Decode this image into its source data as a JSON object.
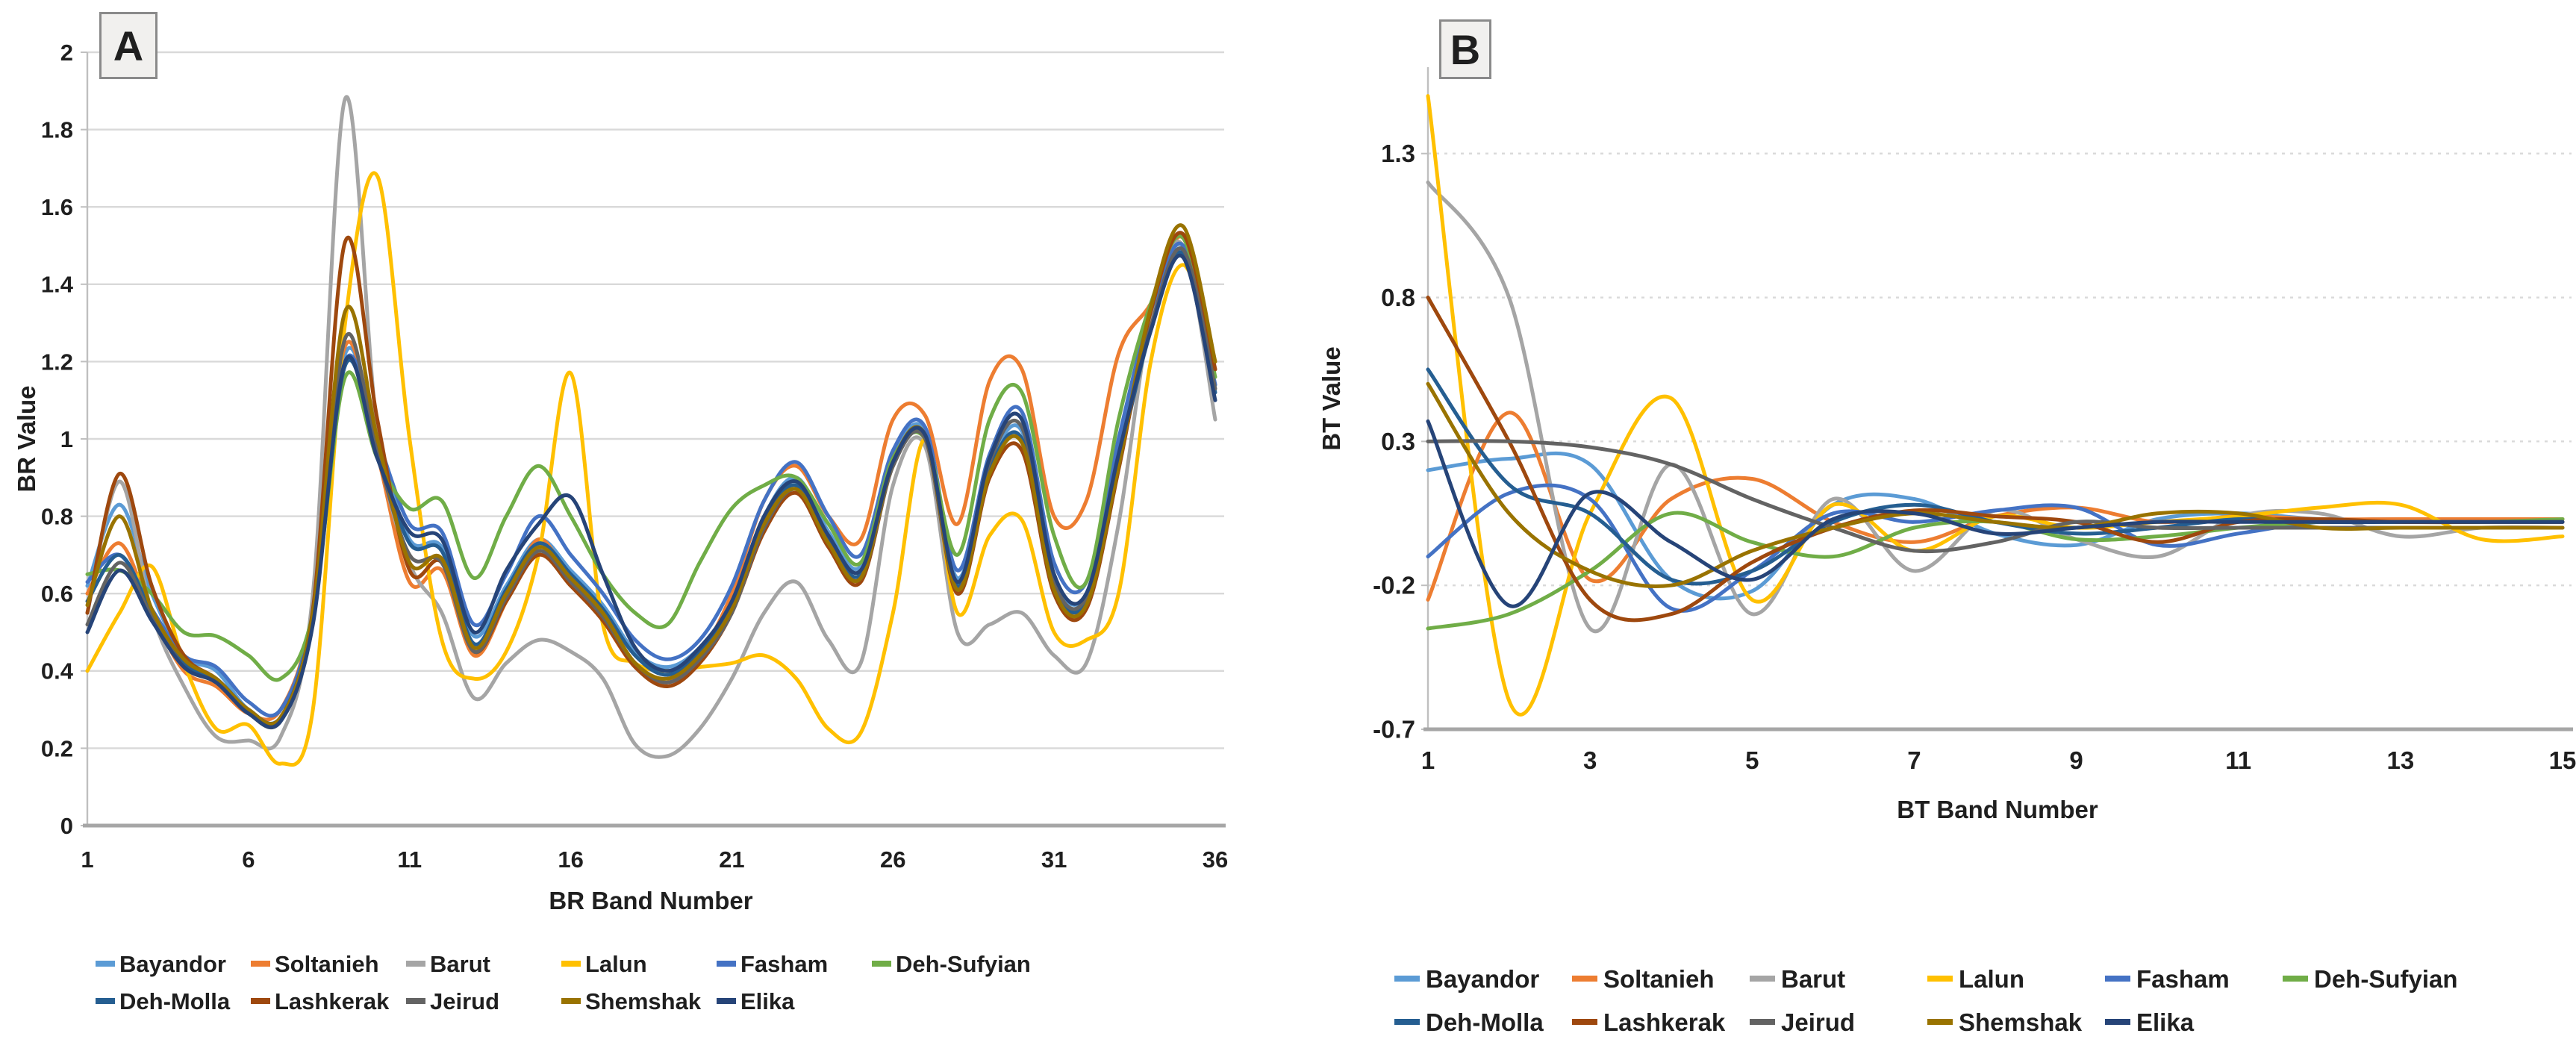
{
  "figure": {
    "panel_count": 2,
    "text_color": "#1f1f1f",
    "grid_color": "#d9d9d9",
    "axis_color": "#a6a6a6"
  },
  "chart_data": [
    {
      "type": "line",
      "panel_label": "A",
      "xlabel": "BR Band Number",
      "ylabel": "BR Value",
      "x_range": [
        1,
        36
      ],
      "xticks": [
        1,
        6,
        11,
        16,
        21,
        26,
        31,
        36
      ],
      "ylim": [
        0,
        2
      ],
      "yticks": [
        {
          "v": 0,
          "label": "0"
        },
        {
          "v": 0.2,
          "label": "0.2"
        },
        {
          "v": 0.4,
          "label": "0.4"
        },
        {
          "v": 0.6,
          "label": "0.6"
        },
        {
          "v": 0.8,
          "label": "0.8"
        },
        {
          "v": 1,
          "label": "1"
        },
        {
          "v": 1.2,
          "label": "1.2"
        },
        {
          "v": 1.4,
          "label": "1.4"
        },
        {
          "v": 1.6,
          "label": "1.6"
        },
        {
          "v": 1.8,
          "label": "1.8"
        },
        {
          "v": 2,
          "label": "2"
        }
      ],
      "grid_style": "solid",
      "legend_position": "bottom",
      "series": [
        {
          "name": "Bayandor",
          "color": "#5B9BD5",
          "values": [
            0.62,
            0.83,
            0.6,
            0.44,
            0.4,
            0.3,
            0.28,
            0.55,
            1.22,
            1.0,
            0.74,
            0.72,
            0.49,
            0.62,
            0.74,
            0.66,
            0.57,
            0.45,
            0.41,
            0.46,
            0.58,
            0.8,
            0.9,
            0.76,
            0.67,
            0.95,
            1.02,
            0.64,
            0.93,
            1.02,
            0.64,
            0.6,
            0.96,
            1.32,
            1.5,
            1.14
          ]
        },
        {
          "name": "Soltanieh",
          "color": "#ED7D31",
          "values": [
            0.6,
            0.73,
            0.55,
            0.4,
            0.36,
            0.29,
            0.3,
            0.56,
            1.24,
            0.96,
            0.63,
            0.66,
            0.44,
            0.58,
            0.74,
            0.63,
            0.53,
            0.41,
            0.37,
            0.44,
            0.6,
            0.84,
            0.93,
            0.8,
            0.74,
            1.05,
            1.06,
            0.78,
            1.15,
            1.18,
            0.8,
            0.84,
            1.22,
            1.35,
            1.52,
            1.18
          ]
        },
        {
          "name": "Barut",
          "color": "#A5A5A5",
          "values": [
            0.55,
            0.89,
            0.55,
            0.36,
            0.23,
            0.22,
            0.23,
            0.6,
            1.88,
            1.02,
            0.68,
            0.55,
            0.33,
            0.42,
            0.48,
            0.45,
            0.38,
            0.21,
            0.18,
            0.25,
            0.38,
            0.55,
            0.63,
            0.48,
            0.42,
            0.88,
            0.98,
            0.5,
            0.52,
            0.55,
            0.44,
            0.42,
            0.78,
            1.32,
            1.5,
            1.05
          ]
        },
        {
          "name": "Lalun",
          "color": "#FFC000",
          "values": [
            0.4,
            0.55,
            0.67,
            0.42,
            0.25,
            0.26,
            0.16,
            0.3,
            1.3,
            1.68,
            1.0,
            0.48,
            0.38,
            0.45,
            0.7,
            1.17,
            0.52,
            0.42,
            0.4,
            0.41,
            0.42,
            0.44,
            0.38,
            0.25,
            0.24,
            0.55,
            1.0,
            0.55,
            0.75,
            0.79,
            0.5,
            0.48,
            0.6,
            1.2,
            1.45,
            1.2
          ]
        },
        {
          "name": "Fasham",
          "color": "#4472C4",
          "values": [
            0.63,
            0.7,
            0.56,
            0.44,
            0.41,
            0.32,
            0.3,
            0.55,
            1.2,
            1.0,
            0.78,
            0.76,
            0.52,
            0.65,
            0.8,
            0.7,
            0.6,
            0.48,
            0.43,
            0.48,
            0.62,
            0.84,
            0.94,
            0.8,
            0.7,
            0.97,
            1.03,
            0.66,
            0.96,
            1.07,
            0.68,
            0.63,
            1.0,
            1.33,
            1.5,
            1.14
          ]
        },
        {
          "name": "Deh-Sufyian",
          "color": "#70AD47",
          "values": [
            0.65,
            0.66,
            0.6,
            0.5,
            0.49,
            0.44,
            0.38,
            0.55,
            1.16,
            0.95,
            0.82,
            0.84,
            0.64,
            0.8,
            0.93,
            0.8,
            0.65,
            0.55,
            0.52,
            0.68,
            0.82,
            0.88,
            0.9,
            0.78,
            0.68,
            0.95,
            1.0,
            0.7,
            1.05,
            1.12,
            0.75,
            0.63,
            1.05,
            1.35,
            1.52,
            1.16
          ]
        },
        {
          "name": "Deh-Molla",
          "color": "#255E91",
          "values": [
            0.58,
            0.7,
            0.55,
            0.42,
            0.38,
            0.3,
            0.28,
            0.54,
            1.19,
            0.97,
            0.73,
            0.71,
            0.47,
            0.61,
            0.73,
            0.65,
            0.56,
            0.44,
            0.39,
            0.45,
            0.57,
            0.79,
            0.88,
            0.74,
            0.65,
            0.94,
            1.01,
            0.62,
            0.92,
            1.0,
            0.62,
            0.58,
            0.94,
            1.28,
            1.48,
            1.12
          ]
        },
        {
          "name": "Lashkerak",
          "color": "#9E480E",
          "values": [
            0.55,
            0.91,
            0.62,
            0.44,
            0.38,
            0.3,
            0.28,
            0.56,
            1.51,
            1.05,
            0.66,
            0.68,
            0.45,
            0.58,
            0.7,
            0.62,
            0.53,
            0.41,
            0.36,
            0.42,
            0.55,
            0.76,
            0.86,
            0.72,
            0.63,
            0.93,
            1.0,
            0.6,
            0.9,
            0.97,
            0.6,
            0.56,
            0.92,
            1.33,
            1.53,
            1.18
          ]
        },
        {
          "name": "Jeirud",
          "color": "#636363",
          "values": [
            0.52,
            0.68,
            0.54,
            0.41,
            0.37,
            0.29,
            0.27,
            0.53,
            1.26,
            0.96,
            0.7,
            0.68,
            0.45,
            0.59,
            0.71,
            0.63,
            0.54,
            0.42,
            0.37,
            0.43,
            0.55,
            0.77,
            0.87,
            0.73,
            0.64,
            0.93,
            1.0,
            0.61,
            0.94,
            1.03,
            0.63,
            0.59,
            0.95,
            1.29,
            1.49,
            1.13
          ]
        },
        {
          "name": "Shemshak",
          "color": "#997300",
          "values": [
            0.57,
            0.8,
            0.56,
            0.43,
            0.38,
            0.3,
            0.28,
            0.55,
            1.33,
            1.0,
            0.68,
            0.69,
            0.46,
            0.6,
            0.72,
            0.64,
            0.55,
            0.42,
            0.38,
            0.44,
            0.56,
            0.78,
            0.87,
            0.73,
            0.64,
            0.94,
            1.01,
            0.61,
            0.91,
            0.99,
            0.61,
            0.57,
            0.93,
            1.34,
            1.55,
            1.2
          ]
        },
        {
          "name": "Elika",
          "color": "#264478",
          "values": [
            0.5,
            0.66,
            0.53,
            0.41,
            0.37,
            0.29,
            0.27,
            0.52,
            1.2,
            0.95,
            0.76,
            0.74,
            0.5,
            0.66,
            0.78,
            0.85,
            0.65,
            0.46,
            0.4,
            0.46,
            0.58,
            0.8,
            0.89,
            0.75,
            0.66,
            0.94,
            1.01,
            0.63,
            0.95,
            1.05,
            0.65,
            0.6,
            0.96,
            1.28,
            1.47,
            1.1
          ]
        }
      ]
    },
    {
      "type": "line",
      "panel_label": "B",
      "xlabel": "BT Band Number",
      "ylabel": "BT Value",
      "x_range": [
        1,
        15
      ],
      "xticks": [
        1,
        3,
        5,
        7,
        9,
        11,
        13,
        15
      ],
      "ylim": [
        -0.7,
        1.6
      ],
      "yticks": [
        {
          "v": 1.3,
          "label": "1.3"
        },
        {
          "v": 0.8,
          "label": "0.8"
        },
        {
          "v": 0.3,
          "label": "0.3"
        },
        {
          "v": -0.2,
          "label": "-0.2"
        },
        {
          "v": -0.7,
          "label": "-0.7"
        }
      ],
      "grid_style": "dotted",
      "legend_position": "bottom",
      "series": [
        {
          "name": "Bayandor",
          "color": "#5B9BD5",
          "values": [
            0.2,
            0.24,
            0.22,
            -0.18,
            -0.22,
            0.08,
            0.1,
            -0.02,
            -0.06,
            0.03,
            0.05,
            0.03,
            0.03,
            0.03,
            0.03
          ]
        },
        {
          "name": "Soltanieh",
          "color": "#ED7D31",
          "values": [
            -0.25,
            0.4,
            -0.18,
            0.1,
            0.17,
            0.02,
            -0.05,
            0.04,
            0.07,
            0.02,
            0.04,
            0.03,
            0.03,
            0.03,
            0.03
          ]
        },
        {
          "name": "Barut",
          "color": "#A5A5A5",
          "values": [
            1.2,
            0.8,
            -0.35,
            0.22,
            -0.3,
            0.1,
            -0.15,
            0.06,
            -0.04,
            -0.1,
            0.04,
            0.05,
            -0.03,
            0.0,
            0.0
          ]
        },
        {
          "name": "Lalun",
          "color": "#FFC000",
          "values": [
            1.5,
            -0.6,
            0.05,
            0.45,
            -0.25,
            0.08,
            -0.08,
            0.04,
            0.0,
            0.02,
            0.04,
            0.07,
            0.08,
            -0.04,
            -0.03
          ]
        },
        {
          "name": "Fasham",
          "color": "#4472C4",
          "values": [
            -0.1,
            0.12,
            0.1,
            -0.28,
            -0.15,
            0.05,
            0.02,
            0.06,
            0.07,
            -0.06,
            -0.02,
            0.02,
            0.02,
            0.02,
            0.02
          ]
        },
        {
          "name": "Deh-Sufyian",
          "color": "#70AD47",
          "values": [
            -0.35,
            -0.3,
            -0.15,
            0.05,
            -0.05,
            -0.1,
            0.0,
            0.02,
            -0.04,
            -0.03,
            0.0,
            0.02,
            0.02,
            0.02,
            0.03
          ]
        },
        {
          "name": "Deh-Molla",
          "color": "#255E91",
          "values": [
            0.55,
            0.15,
            0.05,
            -0.18,
            -0.15,
            0.02,
            0.08,
            0.02,
            -0.02,
            0.0,
            0.03,
            0.02,
            0.02,
            0.02,
            0.02
          ]
        },
        {
          "name": "Lashkerak",
          "color": "#9E480E",
          "values": [
            0.8,
            0.3,
            -0.25,
            -0.3,
            -0.12,
            0.0,
            0.06,
            0.04,
            0.02,
            -0.05,
            0.02,
            0.03,
            0.02,
            0.02,
            0.02
          ]
        },
        {
          "name": "Jeirud",
          "color": "#636363",
          "values": [
            0.3,
            0.3,
            0.28,
            0.22,
            0.1,
            0.0,
            -0.08,
            -0.05,
            0.02,
            0.0,
            0.0,
            0.0,
            0.0,
            0.0,
            0.0
          ]
        },
        {
          "name": "Shemshak",
          "color": "#997300",
          "values": [
            0.5,
            0.05,
            -0.15,
            -0.2,
            -0.08,
            0.0,
            0.05,
            0.02,
            0.0,
            0.05,
            0.05,
            0.0,
            0.0,
            0.0,
            0.0
          ]
        },
        {
          "name": "Elika",
          "color": "#264478",
          "values": [
            0.37,
            -0.27,
            0.12,
            -0.05,
            -0.18,
            0.03,
            0.05,
            -0.02,
            0.0,
            0.02,
            0.02,
            0.02,
            0.02,
            0.02,
            0.02
          ]
        }
      ]
    }
  ]
}
